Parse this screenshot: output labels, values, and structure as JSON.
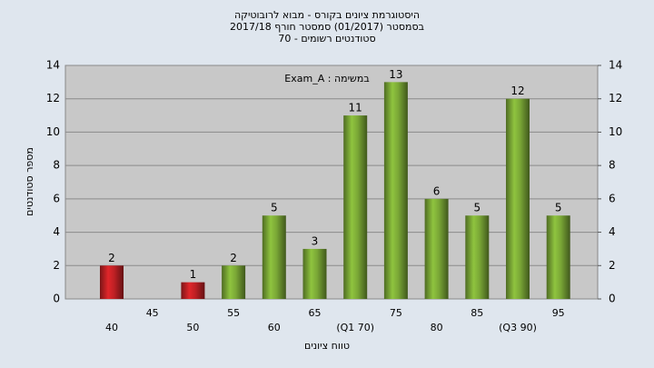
{
  "chart_data": {
    "type": "bar",
    "title": "היסטוגרמת ציונים בקורס - מבוא לרובוטיקה",
    "subtitle": "בסמסטר  (01/2017)  סמסטר חורף  2017/18",
    "subtitle2": "סטודנטים רשומים - 70",
    "annotation": "Exam_A : במשימה",
    "x_label": "טווח ציונים",
    "y_label": "מספר סטודנטים",
    "categories": [
      "40",
      "45",
      "50",
      "55",
      "60",
      "65",
      "(Q1 70)",
      "75",
      "80",
      "85",
      "(Q3 90)",
      "95"
    ],
    "values": [
      2,
      null,
      1,
      2,
      5,
      3,
      11,
      13,
      6,
      5,
      12,
      5
    ],
    "colors": [
      "#e0262a",
      "#e0262a",
      "#e0262a",
      "#8fc43f",
      "#8fc43f",
      "#8fc43f",
      "#8fc43f",
      "#8fc43f",
      "#8fc43f",
      "#8fc43f",
      "#8fc43f",
      "#8fc43f"
    ],
    "ylim": [
      0,
      14
    ],
    "yticks": [
      0,
      2,
      4,
      6,
      8,
      10,
      12,
      14
    ],
    "y2lim": [
      0,
      14
    ],
    "y2ticks": [
      0,
      2,
      4,
      6,
      8,
      10,
      12,
      14
    ],
    "grid": true
  }
}
